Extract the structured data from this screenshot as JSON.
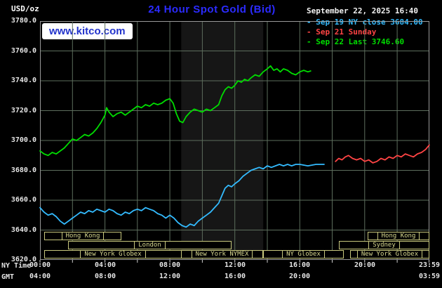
{
  "header": {
    "units_label": "USD/oz",
    "title": "24 Hour Spot Gold (Bid)",
    "datetime": "September 22, 2025 16:40",
    "legend": [
      {
        "label": "- Sep 19 NY close 3684.00",
        "color": "#33bbff"
      },
      {
        "label": "- Sep 21 Sunday",
        "color": "#ff4444"
      },
      {
        "label": "- Sep 22 Last 3746.60",
        "color": "#00dd00"
      }
    ],
    "watermark": "www.kitco.com"
  },
  "axes": {
    "ny_label": "NY Time",
    "gmt_label": "GMT"
  },
  "colors": {
    "background": "#000000",
    "plot_border": "#999999",
    "grid": "#5d6e5d",
    "band": "#161616",
    "title": "#2b2bff",
    "kitco_blue": "#2233cc",
    "watermark_bg": "#ffffff",
    "session": "#c8c87e",
    "session_text": "#d8d890",
    "axis_text": "#e6e6e6"
  },
  "chart_data": {
    "type": "line",
    "title": "24 Hour Spot Gold (Bid)",
    "xlabel": "NY Time / GMT",
    "ylabel": "USD/oz",
    "grid": true,
    "legend_position": "top-right",
    "ylim": [
      3620,
      3780
    ],
    "xlim_hours": [
      0,
      23.983
    ],
    "y_ticks": [
      {
        "v": 3780,
        "label": "3780.0"
      },
      {
        "v": 3760,
        "label": "3760.0"
      },
      {
        "v": 3740,
        "label": "3740.0"
      },
      {
        "v": 3720,
        "label": "3720.0"
      },
      {
        "v": 3700,
        "label": "3700.0"
      },
      {
        "v": 3680,
        "label": "3680.0"
      },
      {
        "v": 3660,
        "label": "3660.0"
      },
      {
        "v": 3640,
        "label": "3640.0"
      },
      {
        "v": 3620,
        "label": "3620.0"
      }
    ],
    "x_ticks_ny": [
      {
        "t": 0,
        "label": "00:00"
      },
      {
        "t": 4,
        "label": "04:00"
      },
      {
        "t": 8,
        "label": "08:00"
      },
      {
        "t": 12,
        "label": "12:00"
      },
      {
        "t": 16,
        "label": "16:00"
      },
      {
        "t": 20,
        "label": "20:00"
      },
      {
        "t": 23.983,
        "label": "23:59"
      }
    ],
    "x_ticks_gmt": [
      {
        "t": 0,
        "label": "04:00"
      },
      {
        "t": 4,
        "label": "08:00"
      },
      {
        "t": 8,
        "label": "12:00"
      },
      {
        "t": 12,
        "label": "16:00"
      },
      {
        "t": 16,
        "label": "20:00"
      },
      {
        "t": 23.983,
        "label": "03:59"
      }
    ],
    "nymex_band": {
      "start": 8.7,
      "end": 13.75
    },
    "series": [
      {
        "id": "sep19",
        "name": "Sep 19 NY close",
        "close": 3684.0,
        "color": "#33bbff",
        "points": [
          [
            0,
            3655
          ],
          [
            0.25,
            3652
          ],
          [
            0.5,
            3650
          ],
          [
            0.75,
            3651
          ],
          [
            1,
            3649
          ],
          [
            1.25,
            3646
          ],
          [
            1.5,
            3644
          ],
          [
            1.75,
            3646
          ],
          [
            2,
            3648
          ],
          [
            2.25,
            3650
          ],
          [
            2.5,
            3652
          ],
          [
            2.75,
            3651
          ],
          [
            3,
            3653
          ],
          [
            3.25,
            3652
          ],
          [
            3.5,
            3654
          ],
          [
            3.75,
            3653
          ],
          [
            4,
            3652
          ],
          [
            4.25,
            3654
          ],
          [
            4.5,
            3653
          ],
          [
            4.75,
            3651
          ],
          [
            5,
            3650
          ],
          [
            5.25,
            3652
          ],
          [
            5.5,
            3651
          ],
          [
            5.75,
            3653
          ],
          [
            6,
            3654
          ],
          [
            6.25,
            3653
          ],
          [
            6.5,
            3655
          ],
          [
            6.75,
            3654
          ],
          [
            7,
            3653
          ],
          [
            7.25,
            3651
          ],
          [
            7.5,
            3650
          ],
          [
            7.75,
            3648
          ],
          [
            8,
            3650
          ],
          [
            8.25,
            3648
          ],
          [
            8.5,
            3645
          ],
          [
            8.75,
            3643
          ],
          [
            9,
            3642
          ],
          [
            9.25,
            3644
          ],
          [
            9.5,
            3643
          ],
          [
            9.75,
            3646
          ],
          [
            10,
            3648
          ],
          [
            10.25,
            3650
          ],
          [
            10.5,
            3652
          ],
          [
            10.75,
            3655
          ],
          [
            11,
            3658
          ],
          [
            11.2,
            3663
          ],
          [
            11.4,
            3668
          ],
          [
            11.6,
            3670
          ],
          [
            11.8,
            3669
          ],
          [
            12,
            3671
          ],
          [
            12.25,
            3673
          ],
          [
            12.5,
            3676
          ],
          [
            12.75,
            3678
          ],
          [
            13,
            3680
          ],
          [
            13.25,
            3681
          ],
          [
            13.5,
            3682
          ],
          [
            13.75,
            3681
          ],
          [
            14,
            3683
          ],
          [
            14.25,
            3682
          ],
          [
            14.5,
            3683
          ],
          [
            14.75,
            3684
          ],
          [
            15,
            3683
          ],
          [
            15.25,
            3684
          ],
          [
            15.5,
            3683
          ],
          [
            15.75,
            3684
          ],
          [
            16,
            3684
          ],
          [
            16.5,
            3683
          ],
          [
            17,
            3684
          ],
          [
            17.5,
            3684
          ]
        ]
      },
      {
        "id": "sep21",
        "name": "Sep 21 Sunday",
        "color": "#ff4444",
        "points": [
          [
            18.2,
            3686
          ],
          [
            18.4,
            3688
          ],
          [
            18.6,
            3687
          ],
          [
            18.8,
            3689
          ],
          [
            19,
            3690
          ],
          [
            19.25,
            3688
          ],
          [
            19.5,
            3687
          ],
          [
            19.75,
            3688
          ],
          [
            20,
            3686
          ],
          [
            20.25,
            3687
          ],
          [
            20.5,
            3685
          ],
          [
            20.75,
            3686
          ],
          [
            21,
            3688
          ],
          [
            21.25,
            3687
          ],
          [
            21.5,
            3689
          ],
          [
            21.75,
            3688
          ],
          [
            22,
            3690
          ],
          [
            22.25,
            3689
          ],
          [
            22.5,
            3691
          ],
          [
            22.75,
            3690
          ],
          [
            23,
            3689
          ],
          [
            23.25,
            3691
          ],
          [
            23.5,
            3692
          ],
          [
            23.75,
            3694
          ],
          [
            23.98,
            3697
          ]
        ]
      },
      {
        "id": "sep22",
        "name": "Sep 22",
        "last": 3746.6,
        "color": "#00dd00",
        "points": [
          [
            0,
            3693
          ],
          [
            0.25,
            3691
          ],
          [
            0.5,
            3690
          ],
          [
            0.75,
            3692
          ],
          [
            1,
            3691
          ],
          [
            1.25,
            3693
          ],
          [
            1.5,
            3695
          ],
          [
            1.75,
            3698
          ],
          [
            2,
            3701
          ],
          [
            2.25,
            3700
          ],
          [
            2.5,
            3702
          ],
          [
            2.75,
            3704
          ],
          [
            3,
            3703
          ],
          [
            3.25,
            3705
          ],
          [
            3.5,
            3708
          ],
          [
            3.75,
            3712
          ],
          [
            4,
            3717
          ],
          [
            4.1,
            3722
          ],
          [
            4.25,
            3719
          ],
          [
            4.5,
            3716
          ],
          [
            4.75,
            3718
          ],
          [
            5,
            3719
          ],
          [
            5.25,
            3717
          ],
          [
            5.5,
            3719
          ],
          [
            5.75,
            3721
          ],
          [
            6,
            3723
          ],
          [
            6.25,
            3722
          ],
          [
            6.5,
            3724
          ],
          [
            6.75,
            3723
          ],
          [
            7,
            3725
          ],
          [
            7.25,
            3724
          ],
          [
            7.5,
            3725
          ],
          [
            7.75,
            3727
          ],
          [
            8,
            3728
          ],
          [
            8.2,
            3725
          ],
          [
            8.4,
            3718
          ],
          [
            8.6,
            3713
          ],
          [
            8.8,
            3712
          ],
          [
            9,
            3716
          ],
          [
            9.25,
            3719
          ],
          [
            9.5,
            3721
          ],
          [
            9.75,
            3720
          ],
          [
            10,
            3719
          ],
          [
            10.25,
            3721
          ],
          [
            10.5,
            3720
          ],
          [
            10.75,
            3722
          ],
          [
            11,
            3724
          ],
          [
            11.2,
            3730
          ],
          [
            11.4,
            3734
          ],
          [
            11.6,
            3736
          ],
          [
            11.8,
            3735
          ],
          [
            12,
            3737
          ],
          [
            12.2,
            3740
          ],
          [
            12.4,
            3739
          ],
          [
            12.6,
            3741
          ],
          [
            12.8,
            3740
          ],
          [
            13,
            3742
          ],
          [
            13.25,
            3744
          ],
          [
            13.5,
            3743
          ],
          [
            13.75,
            3746
          ],
          [
            14,
            3748
          ],
          [
            14.2,
            3750
          ],
          [
            14.4,
            3747
          ],
          [
            14.6,
            3748
          ],
          [
            14.8,
            3746
          ],
          [
            15,
            3748
          ],
          [
            15.25,
            3747
          ],
          [
            15.5,
            3745
          ],
          [
            15.75,
            3744
          ],
          [
            16,
            3746
          ],
          [
            16.25,
            3747
          ],
          [
            16.5,
            3746
          ],
          [
            16.67,
            3746.6
          ]
        ]
      }
    ],
    "sessions": [
      {
        "row": 0,
        "start": 0.25,
        "end": 5.0,
        "label": "Hong Kong"
      },
      {
        "row": 0,
        "start": 20.2,
        "end": 23.983,
        "label": "Hong Kong"
      },
      {
        "row": 1,
        "start": 1.75,
        "end": 11.8,
        "label": "London"
      },
      {
        "row": 1,
        "start": 18.4,
        "end": 23.983,
        "label": "Sydney"
      },
      {
        "row": 2,
        "start": 0.25,
        "end": 8.7,
        "label": "New York Globex"
      },
      {
        "row": 2,
        "start": 8.7,
        "end": 13.75,
        "label": "New York NYMEX"
      },
      {
        "row": 2,
        "start": 13.75,
        "end": 18.7,
        "label": "NY Globex"
      },
      {
        "row": 2,
        "start": 19.1,
        "end": 23.983,
        "label": "New York Globex"
      }
    ]
  }
}
